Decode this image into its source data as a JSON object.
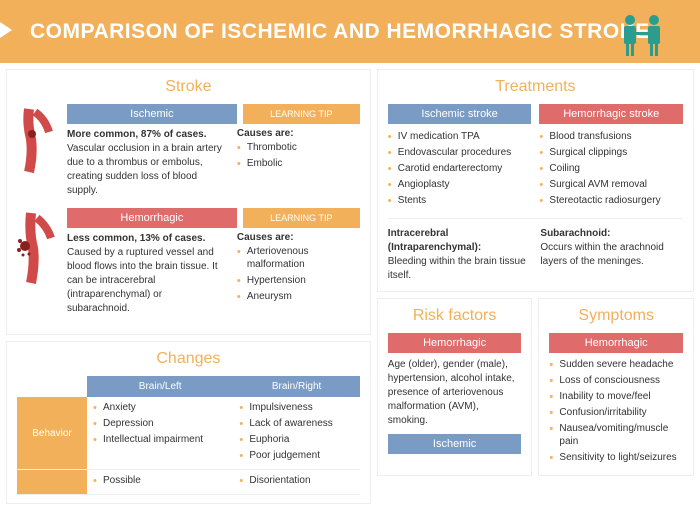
{
  "header": {
    "title": "COMPARISON OF ISCHEMIC AND HEMORRHAGIC STROKE"
  },
  "colors": {
    "orange": "#f2b05a",
    "blue": "#7a9bc4",
    "red": "#e06b6b",
    "artery_red": "#d04a4a",
    "artery_pink": "#e89090"
  },
  "stroke": {
    "title": "Stroke",
    "ischemic": {
      "label": "Ischemic",
      "tip_label": "LEARNING TIP",
      "lead": "More common, 87% of cases.",
      "text": "Vascular occlusion in a brain artery due to a thrombus or embolus, creating sudden loss of blood supply.",
      "causes_label": "Causes are:",
      "causes": [
        "Thrombotic",
        "Embolic"
      ]
    },
    "hemorrhagic": {
      "label": "Hemorrhagic",
      "tip_label": "LEARNING TIP",
      "lead": "Less common, 13% of cases.",
      "text": "Caused by a ruptured vessel and blood flows into the brain tissue. It can be intracerebral (intraparenchymal) or subarachnoid.",
      "causes_label": "Causes are:",
      "causes": [
        "Arteriovenous malformation",
        "Hypertension",
        "Aneurysm"
      ]
    }
  },
  "treatments": {
    "title": "Treatments",
    "ischemic": {
      "label": "Ischemic stroke",
      "items": [
        "IV medication TPA",
        "Endovascular procedures",
        "Carotid endarterectomy",
        "Angioplasty",
        "Stents"
      ]
    },
    "hemorrhagic": {
      "label": "Hemorrhagic stroke",
      "items": [
        "Blood transfusions",
        "Surgical clippings",
        "Coiling",
        "Surgical AVM removal",
        "Stereotactic radiosurgery"
      ]
    },
    "intracerebral": {
      "label": "Intracerebral (Intraparenchymal):",
      "text": "Bleeding within the brain tissue itself."
    },
    "subarachnoid": {
      "label": "Subarachnoid:",
      "text": "Occurs within the arachnoid layers of the meninges."
    }
  },
  "changes": {
    "title": "Changes",
    "cols": [
      "Brain/Left",
      "Brain/Right"
    ],
    "rows": [
      {
        "label": "Behavior",
        "left": [
          "Anxiety",
          "Depression",
          "Intellectual impairment"
        ],
        "right": [
          "Impulsiveness",
          "Lack of awareness",
          "Euphoria",
          "Poor judgement"
        ]
      },
      {
        "label": "",
        "left": [
          "Possible"
        ],
        "right": [
          "Disorientation"
        ]
      }
    ]
  },
  "risk": {
    "title": "Risk factors",
    "hemorrhagic": {
      "label": "Hemorrhagic",
      "text": "Age (older), gender (male), hypertension, alcohol intake, presence of arteriovenous malformation (AVM), smoking."
    },
    "ischemic": {
      "label": "Ischemic"
    }
  },
  "symptoms": {
    "title": "Symptoms",
    "hemorrhagic": {
      "label": "Hemorrhagic",
      "items": [
        "Sudden severe headache",
        "Loss of consciousness",
        "Inability to move/feel",
        "Confusion/irritability",
        "Nausea/vomiting/muscle pain",
        "Sensitivity to light/seizures"
      ]
    }
  }
}
